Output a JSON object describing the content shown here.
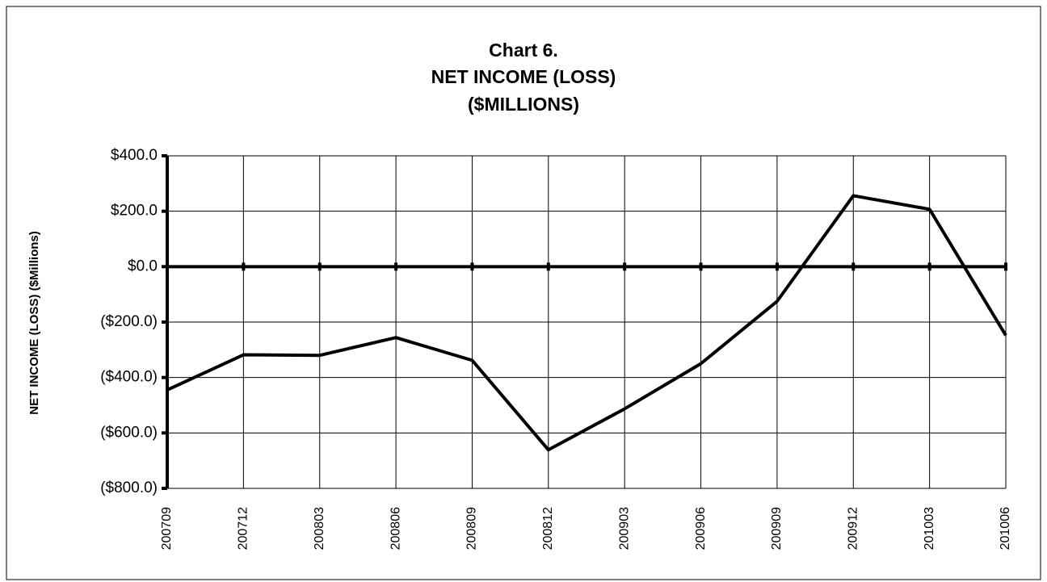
{
  "chart_data": {
    "type": "line",
    "title": [
      "Chart 6.",
      "NET INCOME (LOSS)",
      "($MILLIONS)"
    ],
    "y_label": "NET INCOME (LOSS) ($Millions)",
    "categories": [
      "200709",
      "200712",
      "200803",
      "200806",
      "200809",
      "200812",
      "200903",
      "200906",
      "200909",
      "200912",
      "201003",
      "201006"
    ],
    "series": [
      {
        "name": "Net income (loss)",
        "color": "#000000",
        "values": [
          -445,
          -318,
          -320,
          -256,
          -338,
          -661,
          -513,
          -350,
          -125,
          256,
          207,
          -248
        ]
      }
    ],
    "ylim": [
      -800,
      400
    ],
    "yticks": [
      {
        "value": -800,
        "label": "($800.0)"
      },
      {
        "value": -600,
        "label": "($600.0)"
      },
      {
        "value": -400,
        "label": "($400.0)"
      },
      {
        "value": -200,
        "label": "($200.0)"
      },
      {
        "value": 0,
        "label": "$0.0"
      },
      {
        "value": 200,
        "label": "$200.0"
      },
      {
        "value": 400,
        "label": "$400.0"
      }
    ],
    "grid": true
  }
}
